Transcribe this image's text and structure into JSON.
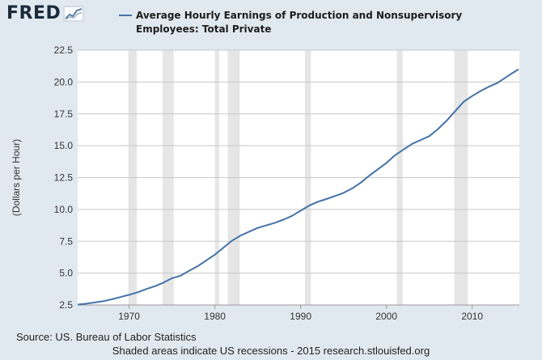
{
  "logo": {
    "text": "FRED",
    "icon": "fred-chart-icon"
  },
  "footer": {
    "source": "Source: US. Bureau of Labor Statistics",
    "note": "Shaded areas indicate US recessions - 2015 research.stlouisfed.org"
  },
  "chart_data": {
    "type": "line",
    "title": "",
    "xlabel": "",
    "ylabel": "(Dollars per Hour)",
    "xlim": [
      1964,
      2015.5
    ],
    "ylim": [
      2.5,
      22.5
    ],
    "yticks": [
      2.5,
      5.0,
      7.5,
      10.0,
      12.5,
      15.0,
      17.5,
      20.0,
      22.5
    ],
    "ytick_labels": [
      "2.5",
      "5.0",
      "7.5",
      "10.0",
      "12.5",
      "15.0",
      "17.5",
      "20.0",
      "22.5"
    ],
    "xticks": [
      1970,
      1980,
      1990,
      2000,
      2010
    ],
    "xtick_labels": [
      "1970",
      "1980",
      "1990",
      "2000",
      "2010"
    ],
    "grid": "horizontal",
    "legend_position": "top",
    "recessions": [
      [
        1969.9,
        1970.9
      ],
      [
        1973.9,
        1975.2
      ],
      [
        1980.0,
        1980.5
      ],
      [
        1981.5,
        1982.9
      ],
      [
        1990.5,
        1991.2
      ],
      [
        2001.2,
        2001.9
      ],
      [
        2007.9,
        2009.5
      ]
    ],
    "series": [
      {
        "name": "Average Hourly Earnings of Production and Nonsupervisory Employees: Total Private",
        "color": "#4572a7",
        "x": [
          1964.0,
          1965,
          1966,
          1967,
          1968,
          1969,
          1970,
          1971,
          1972,
          1973,
          1974,
          1975,
          1976,
          1977,
          1978,
          1979,
          1980,
          1981,
          1982,
          1983,
          1984,
          1985,
          1986,
          1987,
          1988,
          1989,
          1990,
          1991,
          1992,
          1993,
          1994,
          1995,
          1996,
          1997,
          1998,
          1999,
          2000,
          2001,
          2002,
          2003,
          2004,
          2005,
          2006,
          2007,
          2008,
          2009,
          2010,
          2011,
          2012,
          2013,
          2014,
          2015.4
        ],
        "y": [
          2.53,
          2.6,
          2.7,
          2.8,
          2.95,
          3.12,
          3.3,
          3.5,
          3.75,
          3.97,
          4.25,
          4.6,
          4.8,
          5.18,
          5.55,
          6.0,
          6.45,
          7.0,
          7.55,
          7.95,
          8.25,
          8.55,
          8.75,
          8.95,
          9.2,
          9.5,
          9.9,
          10.3,
          10.6,
          10.82,
          11.05,
          11.3,
          11.65,
          12.1,
          12.65,
          13.15,
          13.65,
          14.25,
          14.7,
          15.15,
          15.45,
          15.75,
          16.3,
          16.95,
          17.7,
          18.45,
          18.9,
          19.3,
          19.65,
          19.95,
          20.4,
          21.0
        ]
      }
    ]
  }
}
